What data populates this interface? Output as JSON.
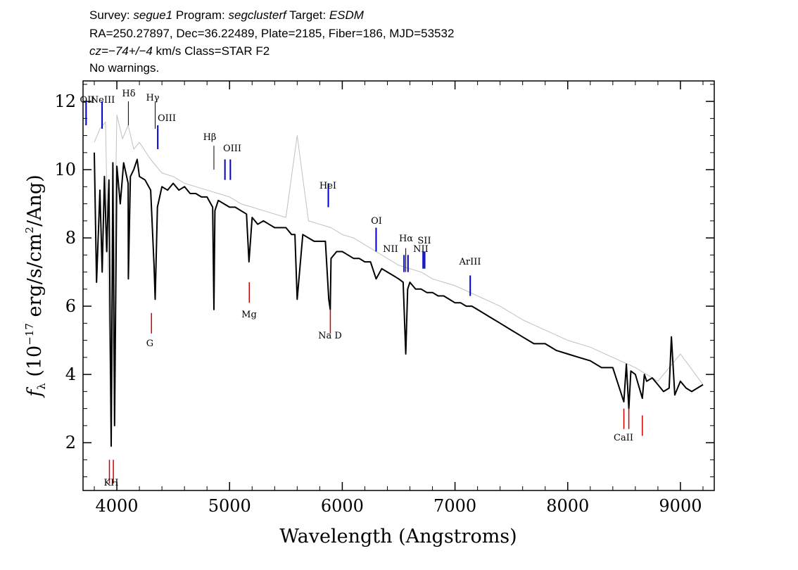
{
  "header": {
    "line1": {
      "survey_label": "Survey: ",
      "survey": "segue1",
      "program_label": " Program: ",
      "program": "segclusterf",
      "target_label": " Target: ",
      "target": "ESDM"
    },
    "line2": "RA=250.27897, Dec=36.22489, Plate=2185, Fiber=186, MJD=53532",
    "line3": {
      "cz_label": "cz",
      "cz_value": "=−74+/−4",
      "cz_rest": " km/s Class=STAR F2"
    },
    "line4": "No warnings."
  },
  "chart_data": {
    "type": "line",
    "xlabel": "Wavelength (Angstroms)",
    "ylabel": {
      "f": "f",
      "sub": "λ",
      "pre": " (10",
      "exp": "−17",
      "mid": " erg/s/cm",
      "exp2": "2",
      "post": "/Ang)"
    },
    "xlim": [
      3700,
      9300
    ],
    "ylim": [
      0.6,
      12.6
    ],
    "xticks": [
      4000,
      5000,
      6000,
      7000,
      8000,
      9000
    ],
    "yticks": [
      2,
      4,
      6,
      8,
      10,
      12
    ],
    "series": [
      {
        "color": "#c0c0c0",
        "x": [
          3800,
          3850,
          3900,
          3950,
          4000,
          4050,
          4100,
          4150,
          4200,
          4300,
          4400,
          4500,
          4600,
          4700,
          4800,
          4900,
          5000,
          5100,
          5200,
          5300,
          5400,
          5500,
          5600,
          5700,
          5800,
          5900,
          6000,
          6100,
          6200,
          6300,
          6400,
          6500,
          6600,
          6700,
          6800,
          6900,
          7000,
          7200,
          7400,
          7600,
          7800,
          8000,
          8200,
          8400,
          8600,
          8800,
          9000,
          9200
        ],
        "y": [
          10.8,
          11.2,
          11.4,
          2.0,
          11.6,
          10.9,
          11.3,
          10.6,
          10.8,
          10.3,
          9.9,
          9.8,
          9.6,
          9.5,
          9.4,
          9.3,
          9.2,
          9.0,
          8.9,
          8.8,
          8.7,
          8.6,
          11.0,
          8.5,
          8.4,
          8.3,
          8.1,
          8.0,
          7.8,
          7.6,
          7.4,
          7.2,
          7.1,
          7.0,
          6.8,
          6.7,
          6.6,
          6.3,
          6.0,
          5.6,
          5.3,
          5.0,
          4.8,
          4.5,
          4.2,
          3.8,
          4.6,
          3.7
        ]
      },
      {
        "color": "#000000",
        "x": [
          3800,
          3820,
          3850,
          3870,
          3890,
          3910,
          3930,
          3950,
          3965,
          3980,
          4000,
          4030,
          4060,
          4100,
          4102,
          4120,
          4150,
          4180,
          4200,
          4250,
          4300,
          4330,
          4340,
          4360,
          4400,
          4450,
          4500,
          4550,
          4600,
          4650,
          4700,
          4750,
          4800,
          4850,
          4861,
          4870,
          4900,
          4950,
          5000,
          5050,
          5100,
          5150,
          5172,
          5200,
          5250,
          5300,
          5350,
          5400,
          5450,
          5500,
          5550,
          5580,
          5600,
          5650,
          5700,
          5750,
          5800,
          5850,
          5880,
          5893,
          5900,
          5950,
          6000,
          6050,
          6100,
          6150,
          6200,
          6250,
          6300,
          6350,
          6400,
          6450,
          6500,
          6540,
          6563,
          6580,
          6600,
          6650,
          6700,
          6750,
          6800,
          6850,
          6900,
          6950,
          7000,
          7050,
          7100,
          7150,
          7200,
          7300,
          7400,
          7500,
          7600,
          7700,
          7800,
          7900,
          8000,
          8100,
          8200,
          8300,
          8400,
          8498,
          8520,
          8542,
          8560,
          8600,
          8662,
          8680,
          8700,
          8750,
          8800,
          8850,
          8900,
          8920,
          8950,
          9000,
          9050,
          9100,
          9150,
          9200
        ],
        "y": [
          10.5,
          6.7,
          9.4,
          7.0,
          9.8,
          7.6,
          9.7,
          1.9,
          10.2,
          2.5,
          10.1,
          9.0,
          10.2,
          9.6,
          6.8,
          9.8,
          10.0,
          10.3,
          9.8,
          9.7,
          9.4,
          7.2,
          6.2,
          8.9,
          9.5,
          9.4,
          9.6,
          9.4,
          9.5,
          9.3,
          9.3,
          9.2,
          9.2,
          8.9,
          5.9,
          8.8,
          9.1,
          9.0,
          8.9,
          8.9,
          8.8,
          8.7,
          7.3,
          8.6,
          8.4,
          8.5,
          8.4,
          8.3,
          8.3,
          8.3,
          8.1,
          8.1,
          6.2,
          8.1,
          8.0,
          7.9,
          7.9,
          7.9,
          6.2,
          5.9,
          7.4,
          7.6,
          7.6,
          7.5,
          7.4,
          7.4,
          7.3,
          7.3,
          6.8,
          7.1,
          7.0,
          6.9,
          6.8,
          6.7,
          4.6,
          6.5,
          6.7,
          6.5,
          6.5,
          6.4,
          6.4,
          6.3,
          6.3,
          6.2,
          6.1,
          6.1,
          6.0,
          6.0,
          5.9,
          5.7,
          5.5,
          5.3,
          5.1,
          4.9,
          4.9,
          4.7,
          4.6,
          4.5,
          4.4,
          4.2,
          4.2,
          3.2,
          4.3,
          3.0,
          4.1,
          4.0,
          3.3,
          4.0,
          3.8,
          3.9,
          3.7,
          3.5,
          3.6,
          5.1,
          3.4,
          3.8,
          3.6,
          3.5,
          3.6,
          3.7
        ]
      }
    ],
    "emission_lines": [
      {
        "label": "OII",
        "wave": 3727
      },
      {
        "label": "NeIII",
        "wave": 3869
      },
      {
        "label": "Hδ",
        "wave": 4102
      },
      {
        "label": "Hγ",
        "wave": 4340
      },
      {
        "label": "OIII",
        "wave": 4363
      },
      {
        "label": "Hβ",
        "wave": 4861
      },
      {
        "label": "OIII",
        "wave": 4959
      },
      {
        "label": "OIII",
        "wave": 5007
      },
      {
        "label": "HeI",
        "wave": 5876
      },
      {
        "label": "OI",
        "wave": 6300
      },
      {
        "label": "NII",
        "wave": 6548
      },
      {
        "label": "Hα",
        "wave": 6563
      },
      {
        "label": "NII",
        "wave": 6583
      },
      {
        "label": "SII",
        "wave": 6717
      },
      {
        "label": "SII",
        "wave": 6731
      },
      {
        "label": "ArIII",
        "wave": 7135
      }
    ],
    "absorption_lines": [
      {
        "label": "K",
        "wave": 3934
      },
      {
        "label": "H",
        "wave": 3969
      },
      {
        "label": "G",
        "wave": 4307
      },
      {
        "label": "Mg",
        "wave": 5175
      },
      {
        "label": "Na D",
        "wave": 5894
      },
      {
        "label": "CaII",
        "wave": 8498
      },
      {
        "label": "CaII",
        "wave": 8542
      },
      {
        "label": "CaII",
        "wave": 8662
      }
    ],
    "line_label_text": {
      "oii": "OII",
      "neiii": "NeIII",
      "hd": "Hδ",
      "hg": "Hγ",
      "oiii1": "OIII",
      "hb": "Hβ",
      "oiii2": "OIII",
      "hei": "HeI",
      "oi": "OI",
      "nii1": "NII",
      "ha": "Hα",
      "nii2": "NII",
      "sii": "SII",
      "ariii": "ArIII",
      "kh": "KH",
      "g": "G",
      "mg": "Mg",
      "nad": "Na D",
      "caii": "CaII"
    }
  }
}
